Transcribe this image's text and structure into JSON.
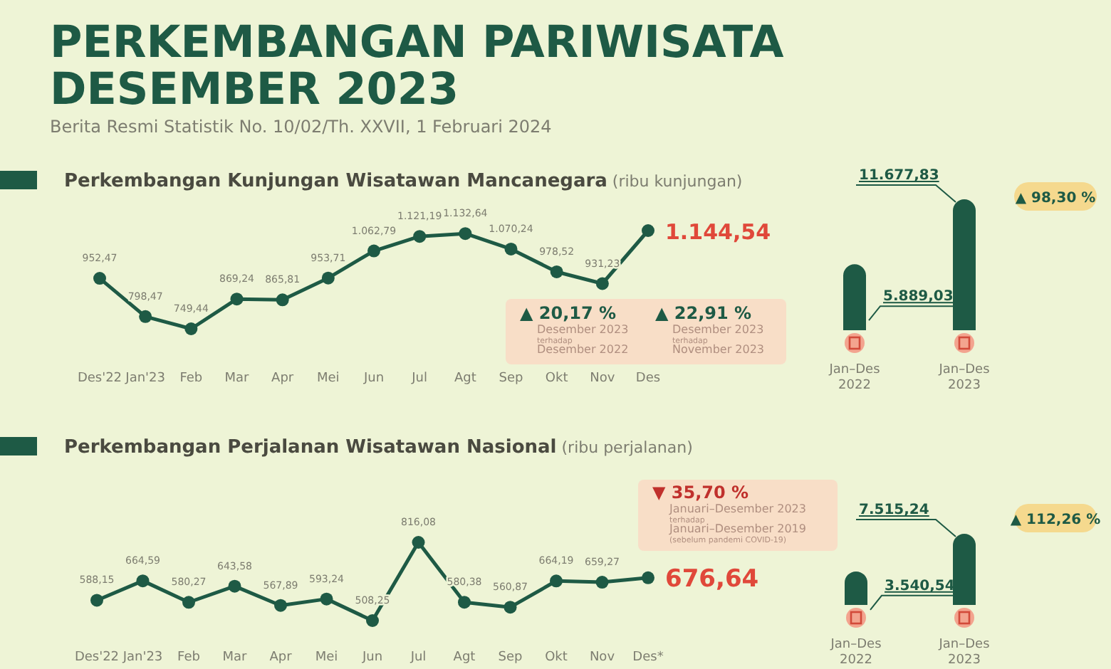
{
  "chart_data": [
    {
      "type": "other",
      "title": "PERKEMBANGAN PARIWISATA DESEMBER 2023",
      "subtitle": "Berita Resmi Statistik No. 10/02/Th. XXVII, 1 Februari 2024"
    },
    {
      "type": "line",
      "title": "Perkembangan Kunjungan Wisatawan Mancanegara",
      "subtitle": "(ribu kunjungan)",
      "categories": [
        "Des'22",
        "Jan'23",
        "Feb",
        "Mar",
        "Apr",
        "Mei",
        "Jun",
        "Jul",
        "Agt",
        "Sep",
        "Okt",
        "Nov",
        "Des"
      ],
      "series": [
        {
          "color": "#1e5a45",
          "values": [
            952.47,
            798.47,
            749.44,
            869.24,
            865.81,
            953.71,
            1062.79,
            1121.19,
            1132.64,
            1070.24,
            978.52,
            931.23,
            1144.54
          ],
          "value_labels": [
            "952,47",
            "798,47",
            "749,44",
            "869,24",
            "865,81",
            "953,71",
            "1.062,79",
            "1.121,19",
            "1.132,64",
            "1.070,24",
            "978,52",
            "931,23",
            "1.144,54"
          ]
        }
      ],
      "marker": "circle",
      "annotations": [
        "▲ 20,17 %",
        "Desember 2023",
        "terhadap",
        "Desember 2022",
        "▲ 22,91 %",
        "Desember 2023",
        "terhadap",
        "November 2023"
      ]
    },
    {
      "type": "bar",
      "categories": [
        "Jan–Des 2022",
        "Jan–Des 2023"
      ],
      "values": [
        5889.03,
        11677.83
      ],
      "color": "#1e5a45",
      "value_labels": [
        "5.889,03",
        "11.677,83"
      ],
      "annotations": [
        "▲ 98,30 %"
      ]
    },
    {
      "type": "line",
      "title": "Perkembangan Perjalanan Wisatawan Nasional",
      "subtitle": "(ribu perjalanan)",
      "categories": [
        "Des'22",
        "Jan'23",
        "Feb",
        "Mar",
        "Apr",
        "Mei",
        "Jun",
        "Jul",
        "Agt",
        "Sep",
        "Okt",
        "Nov",
        "Des*"
      ],
      "series": [
        {
          "color": "#1e5a45",
          "values": [
            588.15,
            664.59,
            580.27,
            643.58,
            567.89,
            593.24,
            508.25,
            816.08,
            580.38,
            560.87,
            664.19,
            659.27,
            676.64
          ],
          "value_labels": [
            "588,15",
            "664,59",
            "580,27",
            "643,58",
            "567,89",
            "593,24",
            "508,25",
            "816,08",
            "580,38",
            "560,87",
            "664,19",
            "659,27",
            "676,64"
          ]
        }
      ],
      "marker": "circle",
      "annotations": [
        "▼ 35,70 %",
        "Januari–Desember 2023",
        "terhadap",
        "Januari–Desember 2019",
        "(sebelum pandemi COVID-19)"
      ]
    },
    {
      "type": "bar",
      "categories": [
        "Jan–Des 2022",
        "Jan–Des 2023"
      ],
      "values": [
        3540.54,
        7515.24
      ],
      "color": "#1e5a45",
      "value_labels": [
        "3.540,54",
        "7.515,24"
      ],
      "annotations": [
        "▲ 112,26 %"
      ]
    }
  ]
}
